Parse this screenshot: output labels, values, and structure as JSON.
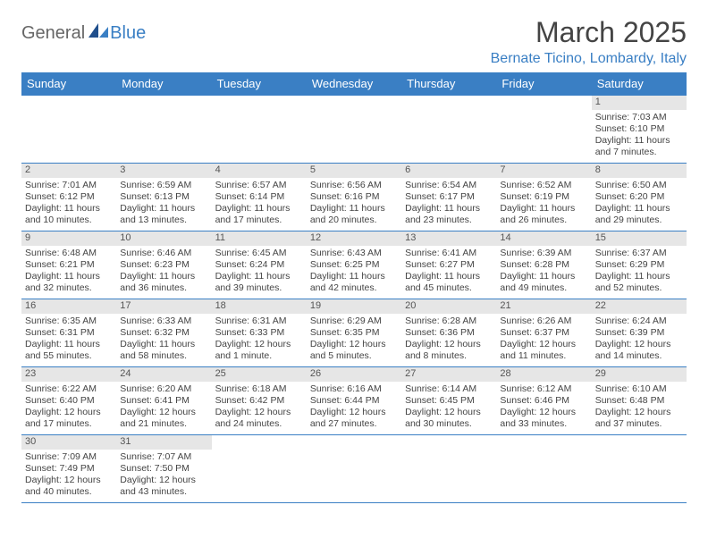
{
  "brand": {
    "part1": "General",
    "part2": "Blue"
  },
  "title": "March 2025",
  "location": "Bernate Ticino, Lombardy, Italy",
  "colors": {
    "accent": "#3a7fc4",
    "day_bg": "#e6e6e6",
    "text": "#444444",
    "bg": "#ffffff"
  },
  "weekdays": [
    "Sunday",
    "Monday",
    "Tuesday",
    "Wednesday",
    "Thursday",
    "Friday",
    "Saturday"
  ],
  "weeks": [
    [
      null,
      null,
      null,
      null,
      null,
      null,
      {
        "d": "1",
        "sr": "7:03 AM",
        "ss": "6:10 PM",
        "dl": "11 hours and 7 minutes."
      }
    ],
    [
      {
        "d": "2",
        "sr": "7:01 AM",
        "ss": "6:12 PM",
        "dl": "11 hours and 10 minutes."
      },
      {
        "d": "3",
        "sr": "6:59 AM",
        "ss": "6:13 PM",
        "dl": "11 hours and 13 minutes."
      },
      {
        "d": "4",
        "sr": "6:57 AM",
        "ss": "6:14 PM",
        "dl": "11 hours and 17 minutes."
      },
      {
        "d": "5",
        "sr": "6:56 AM",
        "ss": "6:16 PM",
        "dl": "11 hours and 20 minutes."
      },
      {
        "d": "6",
        "sr": "6:54 AM",
        "ss": "6:17 PM",
        "dl": "11 hours and 23 minutes."
      },
      {
        "d": "7",
        "sr": "6:52 AM",
        "ss": "6:19 PM",
        "dl": "11 hours and 26 minutes."
      },
      {
        "d": "8",
        "sr": "6:50 AM",
        "ss": "6:20 PM",
        "dl": "11 hours and 29 minutes."
      }
    ],
    [
      {
        "d": "9",
        "sr": "6:48 AM",
        "ss": "6:21 PM",
        "dl": "11 hours and 32 minutes."
      },
      {
        "d": "10",
        "sr": "6:46 AM",
        "ss": "6:23 PM",
        "dl": "11 hours and 36 minutes."
      },
      {
        "d": "11",
        "sr": "6:45 AM",
        "ss": "6:24 PM",
        "dl": "11 hours and 39 minutes."
      },
      {
        "d": "12",
        "sr": "6:43 AM",
        "ss": "6:25 PM",
        "dl": "11 hours and 42 minutes."
      },
      {
        "d": "13",
        "sr": "6:41 AM",
        "ss": "6:27 PM",
        "dl": "11 hours and 45 minutes."
      },
      {
        "d": "14",
        "sr": "6:39 AM",
        "ss": "6:28 PM",
        "dl": "11 hours and 49 minutes."
      },
      {
        "d": "15",
        "sr": "6:37 AM",
        "ss": "6:29 PM",
        "dl": "11 hours and 52 minutes."
      }
    ],
    [
      {
        "d": "16",
        "sr": "6:35 AM",
        "ss": "6:31 PM",
        "dl": "11 hours and 55 minutes."
      },
      {
        "d": "17",
        "sr": "6:33 AM",
        "ss": "6:32 PM",
        "dl": "11 hours and 58 minutes."
      },
      {
        "d": "18",
        "sr": "6:31 AM",
        "ss": "6:33 PM",
        "dl": "12 hours and 1 minute."
      },
      {
        "d": "19",
        "sr": "6:29 AM",
        "ss": "6:35 PM",
        "dl": "12 hours and 5 minutes."
      },
      {
        "d": "20",
        "sr": "6:28 AM",
        "ss": "6:36 PM",
        "dl": "12 hours and 8 minutes."
      },
      {
        "d": "21",
        "sr": "6:26 AM",
        "ss": "6:37 PM",
        "dl": "12 hours and 11 minutes."
      },
      {
        "d": "22",
        "sr": "6:24 AM",
        "ss": "6:39 PM",
        "dl": "12 hours and 14 minutes."
      }
    ],
    [
      {
        "d": "23",
        "sr": "6:22 AM",
        "ss": "6:40 PM",
        "dl": "12 hours and 17 minutes."
      },
      {
        "d": "24",
        "sr": "6:20 AM",
        "ss": "6:41 PM",
        "dl": "12 hours and 21 minutes."
      },
      {
        "d": "25",
        "sr": "6:18 AM",
        "ss": "6:42 PM",
        "dl": "12 hours and 24 minutes."
      },
      {
        "d": "26",
        "sr": "6:16 AM",
        "ss": "6:44 PM",
        "dl": "12 hours and 27 minutes."
      },
      {
        "d": "27",
        "sr": "6:14 AM",
        "ss": "6:45 PM",
        "dl": "12 hours and 30 minutes."
      },
      {
        "d": "28",
        "sr": "6:12 AM",
        "ss": "6:46 PM",
        "dl": "12 hours and 33 minutes."
      },
      {
        "d": "29",
        "sr": "6:10 AM",
        "ss": "6:48 PM",
        "dl": "12 hours and 37 minutes."
      }
    ],
    [
      {
        "d": "30",
        "sr": "7:09 AM",
        "ss": "7:49 PM",
        "dl": "12 hours and 40 minutes."
      },
      {
        "d": "31",
        "sr": "7:07 AM",
        "ss": "7:50 PM",
        "dl": "12 hours and 43 minutes."
      },
      null,
      null,
      null,
      null,
      null
    ]
  ],
  "labels": {
    "sunrise": "Sunrise:",
    "sunset": "Sunset:",
    "daylight": "Daylight:"
  }
}
